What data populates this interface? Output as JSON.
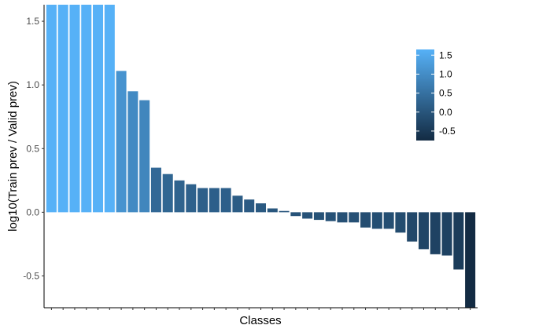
{
  "chart_data": {
    "type": "bar",
    "xlabel": "Classes",
    "ylabel": "log10(Train prev / Valid prev)",
    "ylim": [
      -0.75,
      1.63
    ],
    "yticks": [
      {
        "value": 1.5,
        "label": "1.5"
      },
      {
        "value": 1.0,
        "label": "1.0"
      },
      {
        "value": 0.5,
        "label": "0.5"
      },
      {
        "value": 0.0,
        "label": "0.0"
      },
      {
        "value": -0.5,
        "label": "-0.5"
      }
    ],
    "grid": false,
    "legend": {
      "position": "top-right",
      "type": "colorbar",
      "range": [
        -0.75,
        1.65
      ],
      "low_color": "#132B43",
      "high_color": "#56B1F7",
      "ticks": [
        {
          "value": 1.5,
          "label": "1.5"
        },
        {
          "value": 1.0,
          "label": "1.0"
        },
        {
          "value": 0.5,
          "label": "0.5"
        },
        {
          "value": 0.0,
          "label": "0.0"
        },
        {
          "value": -0.5,
          "label": "-0.5"
        }
      ]
    },
    "values": [
      1.65,
      1.65,
      1.65,
      1.65,
      1.65,
      1.65,
      1.11,
      0.95,
      0.88,
      0.35,
      0.3,
      0.25,
      0.22,
      0.19,
      0.19,
      0.19,
      0.13,
      0.1,
      0.07,
      0.03,
      0.01,
      -0.03,
      -0.05,
      -0.06,
      -0.07,
      -0.08,
      -0.08,
      -0.12,
      -0.13,
      -0.13,
      -0.16,
      -0.23,
      -0.29,
      -0.33,
      -0.34,
      -0.45,
      -0.75
    ]
  }
}
